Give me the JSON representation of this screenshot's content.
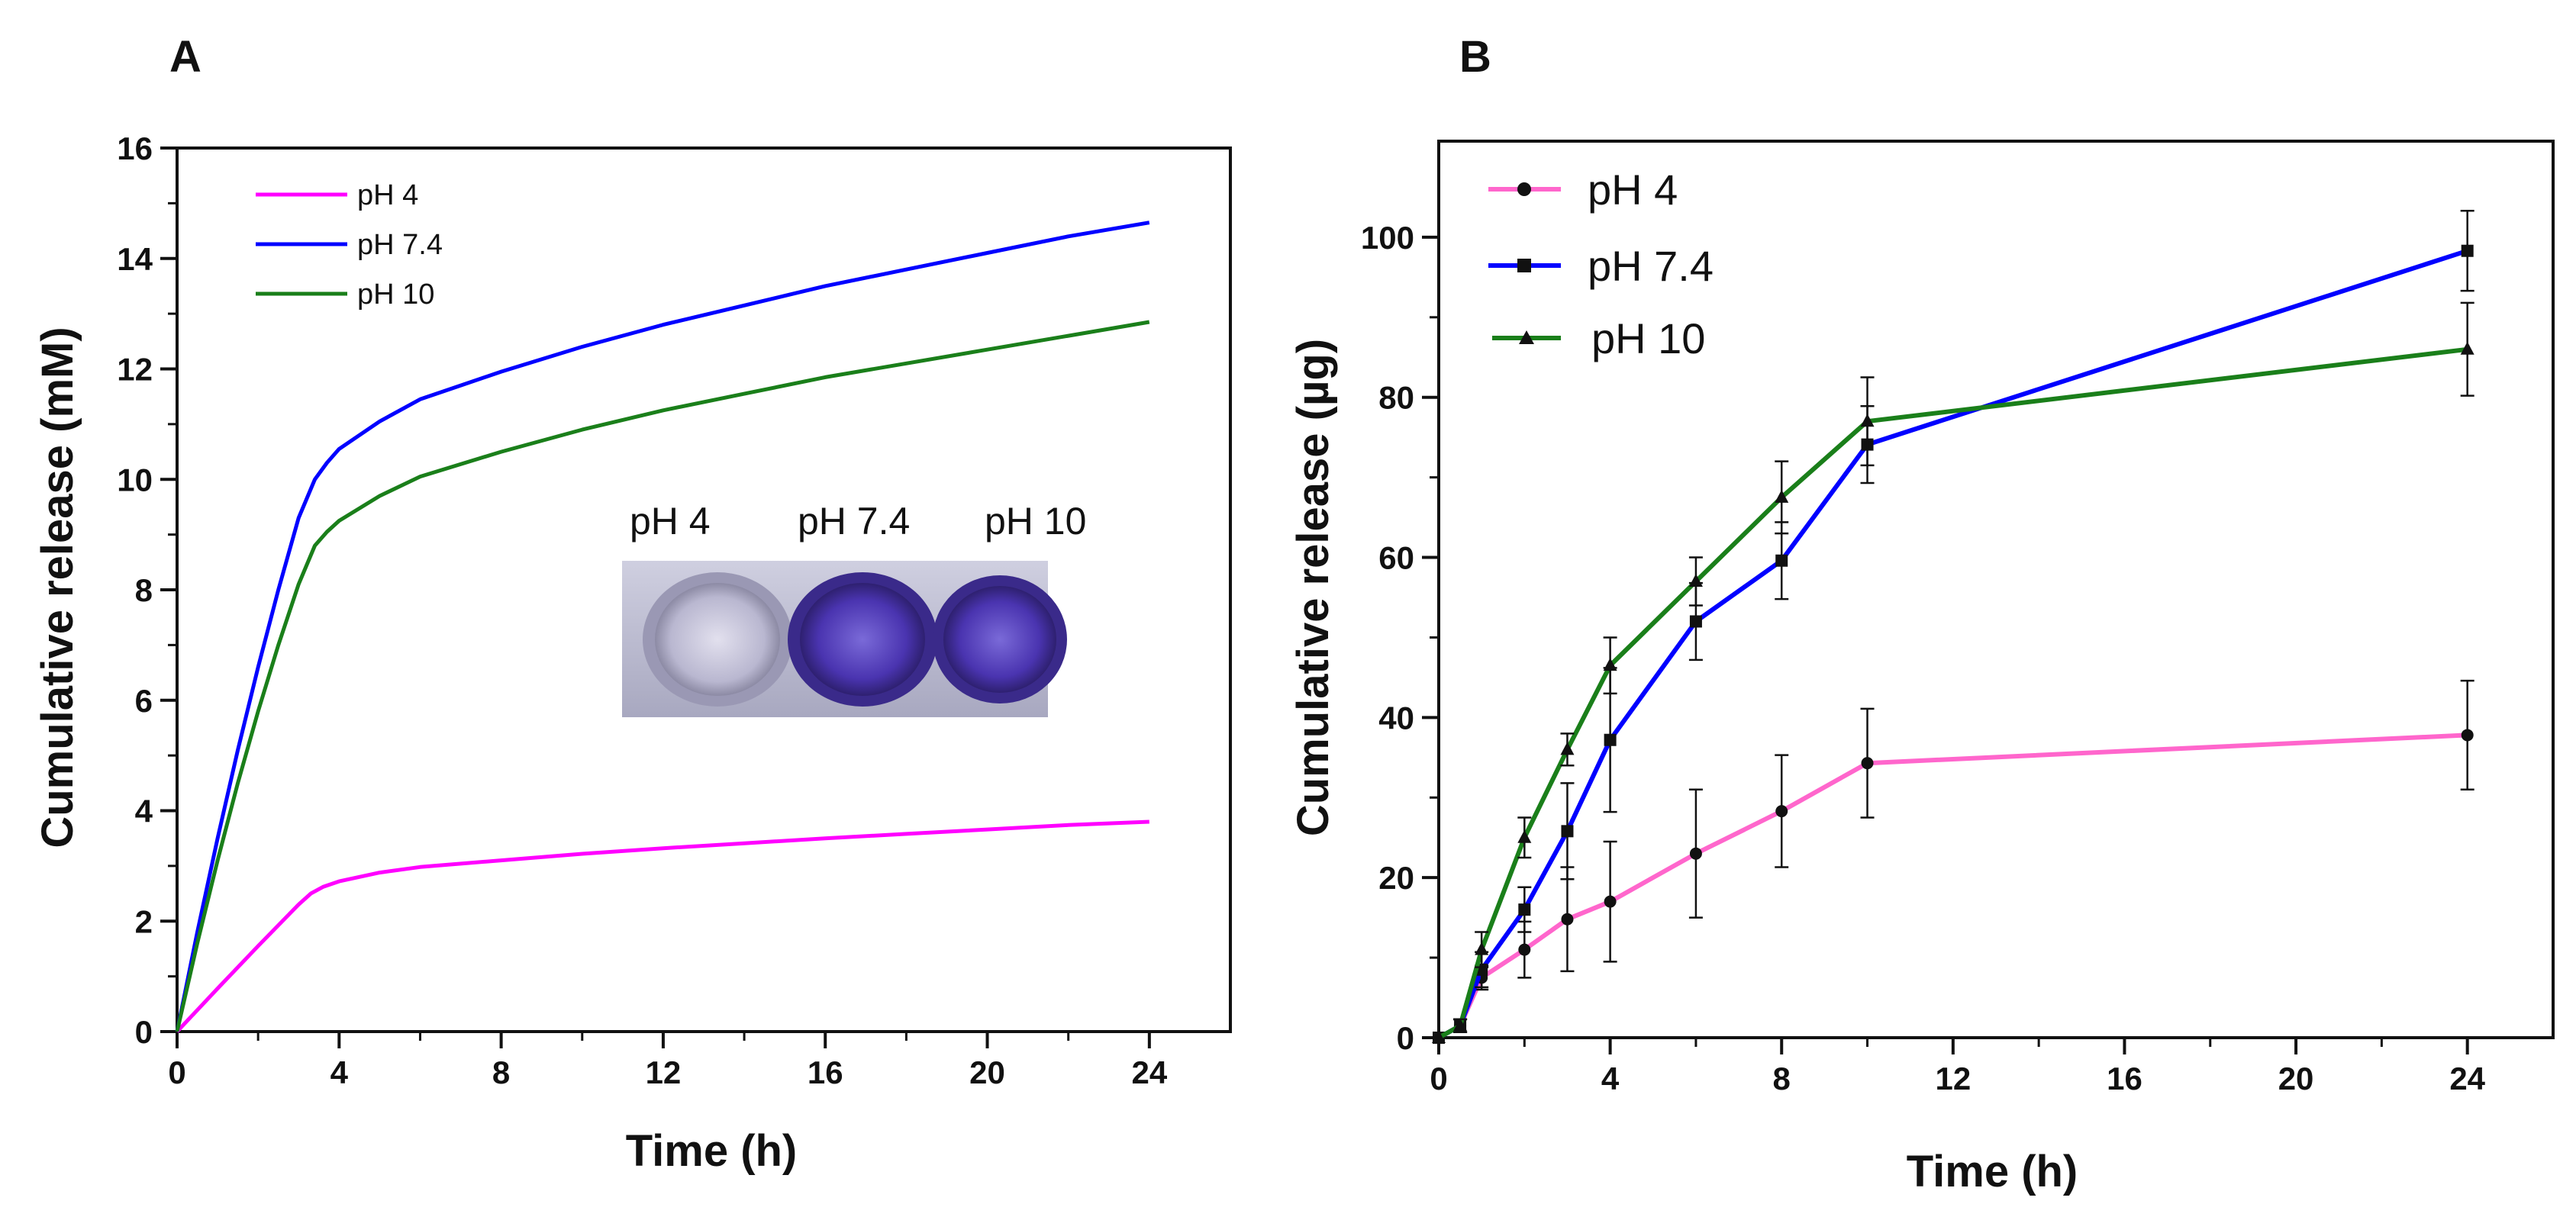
{
  "chart_data": [
    {
      "panel": "A",
      "type": "line",
      "xlabel": "Time (h)",
      "ylabel": "Cumulative release (mM)",
      "xlim": [
        0,
        26
      ],
      "ylim": [
        0,
        16
      ],
      "xticks": [
        0,
        4,
        8,
        12,
        16,
        20,
        24
      ],
      "yticks": [
        0,
        2,
        4,
        6,
        8,
        10,
        12,
        14,
        16
      ],
      "legend_position": "top-left",
      "series": [
        {
          "name": "pH 4",
          "color": "#ff00ff",
          "x": [
            0,
            1,
            2,
            3,
            3.3,
            3.6,
            4,
            5,
            6,
            8,
            10,
            12,
            14,
            16,
            18,
            20,
            22,
            24
          ],
          "y": [
            0,
            0.78,
            1.55,
            2.3,
            2.5,
            2.62,
            2.72,
            2.88,
            2.98,
            3.1,
            3.22,
            3.32,
            3.41,
            3.5,
            3.58,
            3.66,
            3.74,
            3.8
          ]
        },
        {
          "name": "pH 7.4",
          "color": "#0000ff",
          "x": [
            0,
            0.5,
            1,
            1.5,
            2,
            2.5,
            3,
            3.4,
            3.7,
            4,
            5,
            6,
            8,
            10,
            12,
            14,
            16,
            18,
            20,
            22,
            24
          ],
          "y": [
            0,
            1.8,
            3.5,
            5.1,
            6.6,
            8.0,
            9.3,
            10.0,
            10.3,
            10.55,
            11.05,
            11.45,
            11.95,
            12.4,
            12.8,
            13.15,
            13.5,
            13.8,
            14.1,
            14.4,
            14.65
          ]
        },
        {
          "name": "pH 10",
          "color": "#1a7f1a",
          "x": [
            0,
            0.5,
            1,
            1.5,
            2,
            2.5,
            3,
            3.4,
            3.7,
            4,
            5,
            6,
            8,
            10,
            12,
            14,
            16,
            18,
            20,
            22,
            24
          ],
          "y": [
            0,
            1.6,
            3.1,
            4.5,
            5.8,
            7.0,
            8.1,
            8.8,
            9.05,
            9.25,
            9.7,
            10.05,
            10.5,
            10.9,
            11.25,
            11.55,
            11.85,
            12.1,
            12.35,
            12.6,
            12.85
          ]
        }
      ]
    },
    {
      "panel": "B",
      "type": "line",
      "xlabel": "Time (h)",
      "ylabel": "Cumulative release (µg)",
      "xlim": [
        0,
        26
      ],
      "ylim": [
        0,
        112
      ],
      "xticks": [
        0,
        4,
        8,
        12,
        16,
        20,
        24
      ],
      "yticks": [
        0,
        20,
        40,
        60,
        80,
        100
      ],
      "legend_position": "top-left",
      "series": [
        {
          "name": "pH 4",
          "color": "#ff66cc",
          "marker": "circle",
          "x": [
            0,
            0.5,
            1,
            2,
            3,
            4,
            6,
            8,
            10,
            24
          ],
          "y": [
            0,
            1.5,
            7.5,
            11,
            14.8,
            17,
            23,
            28.3,
            34.3,
            37.8
          ],
          "err": [
            0,
            0.8,
            1.5,
            3.5,
            6.5,
            7.5,
            8,
            7,
            6.8,
            6.8
          ]
        },
        {
          "name": "pH 7.4",
          "color": "#0000ff",
          "marker": "square",
          "x": [
            0,
            0.5,
            1,
            2,
            3,
            4,
            6,
            8,
            10,
            24
          ],
          "y": [
            0,
            1.5,
            8.5,
            16,
            25.8,
            37.2,
            52,
            59.6,
            74.1,
            98.3
          ],
          "err": [
            0,
            0.8,
            2.2,
            2.8,
            6,
            9,
            4.8,
            4.8,
            4.8,
            5
          ]
        },
        {
          "name": "pH 10",
          "color": "#1a7f1a",
          "marker": "triangle",
          "x": [
            0,
            0.5,
            1,
            2,
            3,
            4,
            6,
            8,
            10,
            24
          ],
          "y": [
            0,
            1.5,
            11,
            25,
            36,
            46.5,
            57,
            67.5,
            77,
            86
          ],
          "err": [
            0,
            0.8,
            2.2,
            2.5,
            2,
            3.5,
            3,
            4.5,
            5.5,
            5.8
          ]
        }
      ]
    }
  ],
  "panel_a_inset": {
    "labels": [
      "pH 4",
      "pH 7.4",
      "pH 10"
    ],
    "photo_description_icon": "well-plate-photo"
  }
}
